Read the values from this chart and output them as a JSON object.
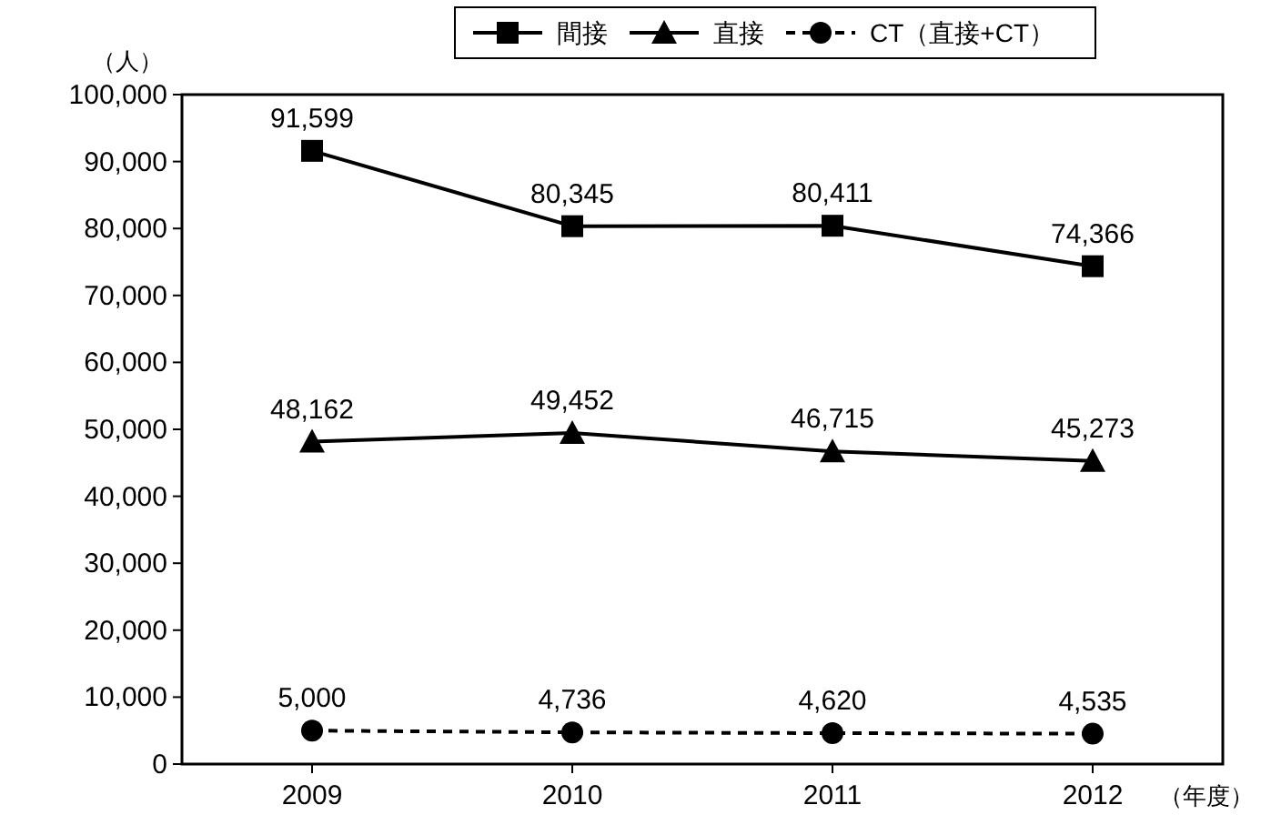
{
  "chart_data": {
    "type": "line",
    "ylabel": "（人）",
    "xlabel": "（年度）",
    "categories": [
      "2009",
      "2010",
      "2011",
      "2012"
    ],
    "series": [
      {
        "name": "間接",
        "color": "#000000",
        "values": [
          91599,
          80345,
          80411,
          74366
        ],
        "value_labels": [
          "91,599",
          "80,345",
          "80,411",
          "74,366"
        ],
        "marker": "square",
        "line_style": "solid"
      },
      {
        "name": "直接",
        "color": "#000000",
        "values": [
          48162,
          49452,
          46715,
          45273
        ],
        "value_labels": [
          "48,162",
          "49,452",
          "46,715",
          "45,273"
        ],
        "marker": "triangle",
        "line_style": "solid"
      },
      {
        "name": "CT（直接+CT）",
        "color": "#000000",
        "values": [
          5000,
          4736,
          4620,
          4535
        ],
        "value_labels": [
          "5,000",
          "4,736",
          "4,620",
          "4,535"
        ],
        "marker": "circle",
        "line_style": "dashed"
      }
    ],
    "ylim": [
      0,
      100000
    ],
    "yticks": [
      {
        "value": 0,
        "label": "0"
      },
      {
        "value": 10000,
        "label": "10,000"
      },
      {
        "value": 20000,
        "label": "20,000"
      },
      {
        "value": 30000,
        "label": "30,000"
      },
      {
        "value": 40000,
        "label": "40,000"
      },
      {
        "value": 50000,
        "label": "50,000"
      },
      {
        "value": 60000,
        "label": "60,000"
      },
      {
        "value": 70000,
        "label": "70,000"
      },
      {
        "value": 80000,
        "label": "80,000"
      },
      {
        "value": 90000,
        "label": "90,000"
      },
      {
        "value": 100000,
        "label": "100,000"
      }
    ],
    "grid": false,
    "legend": "top"
  }
}
